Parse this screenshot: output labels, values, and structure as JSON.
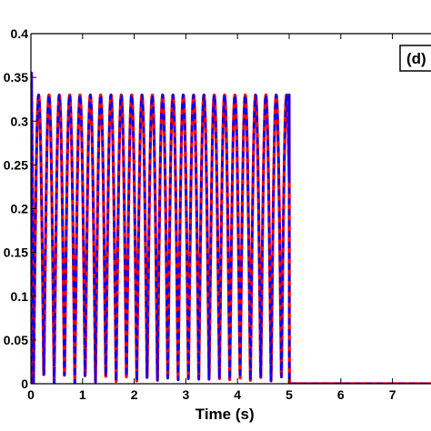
{
  "chart_data": {
    "type": "line",
    "title": "",
    "xlabel": "Time (s)",
    "ylabel": "",
    "panel_label": "(d)",
    "xlim": [
      0,
      8
    ],
    "ylim": [
      0,
      0.4
    ],
    "x_ticks": [
      0,
      1,
      2,
      3,
      4,
      5,
      6,
      7
    ],
    "x_tick_labels": [
      "0",
      "1",
      "2",
      "3",
      "4",
      "5",
      "6",
      "7"
    ],
    "y_ticks": [
      0,
      0.05,
      0.1,
      0.15,
      0.2,
      0.25,
      0.3,
      0.35,
      0.4
    ],
    "y_tick_labels": [
      "0",
      "0.05",
      "0.1",
      "0.15",
      "0.2",
      "0.25",
      "0.3",
      "0.35",
      "0.4"
    ],
    "grid": false,
    "series": [
      {
        "color": "#ff0000",
        "style": "solid",
        "oscillation_start": 0.05,
        "oscillation_end": 5.0,
        "frequency_hz": 5,
        "peak": 0.33,
        "initial_peak": 0.355,
        "after_value": 0.0
      },
      {
        "color": "#0000ff",
        "style": "dashed",
        "oscillation_start": 0.05,
        "oscillation_end": 5.0,
        "frequency_hz": 5,
        "peak": 0.33,
        "initial_peak": 0.355,
        "after_value": 0.0
      }
    ]
  }
}
